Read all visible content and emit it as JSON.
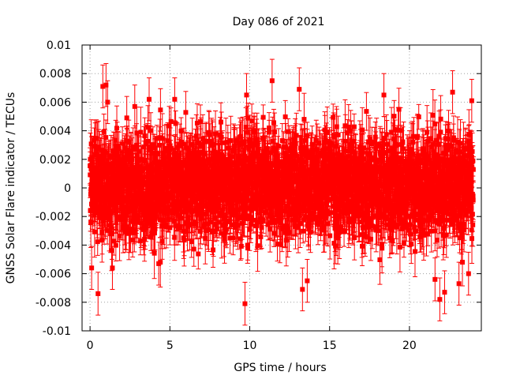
{
  "chart_data": {
    "type": "scatter",
    "title": "Day 086 of 2021",
    "xlabel": "GPS time / hours",
    "ylabel": "GNSS Solar Flare indicator / TECUs",
    "xlim": [
      -0.5,
      24.5
    ],
    "ylim": [
      -0.01,
      0.01
    ],
    "x_ticks": [
      0,
      5,
      10,
      15,
      20
    ],
    "x_tick_labels": [
      "0",
      "5",
      "10",
      "15",
      "20"
    ],
    "y_ticks": [
      -0.01,
      -0.008,
      -0.006,
      -0.004,
      -0.002,
      0,
      0.002,
      0.004,
      0.006,
      0.008,
      0.01
    ],
    "y_tick_labels": [
      "-0.01",
      "-0.008",
      "-0.006",
      "-0.004",
      "-0.002",
      "0",
      "0.002",
      "0.004",
      "0.006",
      "0.008",
      "0.01"
    ],
    "grid": true,
    "legend": "none",
    "marker": "square",
    "error_bars": true,
    "series_color": "#ff0000",
    "x_start": 0,
    "x_end": 24,
    "point_count": 2880,
    "typical_error": 0.0015,
    "outliers": [
      {
        "x": 0.1,
        "y": -0.0056
      },
      {
        "x": 0.5,
        "y": -0.0074
      },
      {
        "x": 0.8,
        "y": 0.0071
      },
      {
        "x": 1.0,
        "y": 0.0072
      },
      {
        "x": 1.1,
        "y": 0.006
      },
      {
        "x": 1.4,
        "y": -0.0056
      },
      {
        "x": 2.3,
        "y": 0.0049
      },
      {
        "x": 2.8,
        "y": 0.0057
      },
      {
        "x": 3.7,
        "y": 0.0062
      },
      {
        "x": 4.3,
        "y": -0.0053
      },
      {
        "x": 5.3,
        "y": 0.0062
      },
      {
        "x": 9.7,
        "y": -0.0081
      },
      {
        "x": 9.8,
        "y": 0.0065
      },
      {
        "x": 11.4,
        "y": 0.0075
      },
      {
        "x": 13.1,
        "y": 0.0069
      },
      {
        "x": 13.3,
        "y": -0.0071
      },
      {
        "x": 13.6,
        "y": -0.0065
      },
      {
        "x": 18.4,
        "y": 0.0065
      },
      {
        "x": 21.6,
        "y": -0.0064
      },
      {
        "x": 21.9,
        "y": -0.0078
      },
      {
        "x": 22.2,
        "y": -0.0073
      },
      {
        "x": 22.7,
        "y": 0.0067
      },
      {
        "x": 23.1,
        "y": -0.0067
      },
      {
        "x": 23.7,
        "y": -0.006
      },
      {
        "x": 23.9,
        "y": 0.0061
      }
    ]
  }
}
